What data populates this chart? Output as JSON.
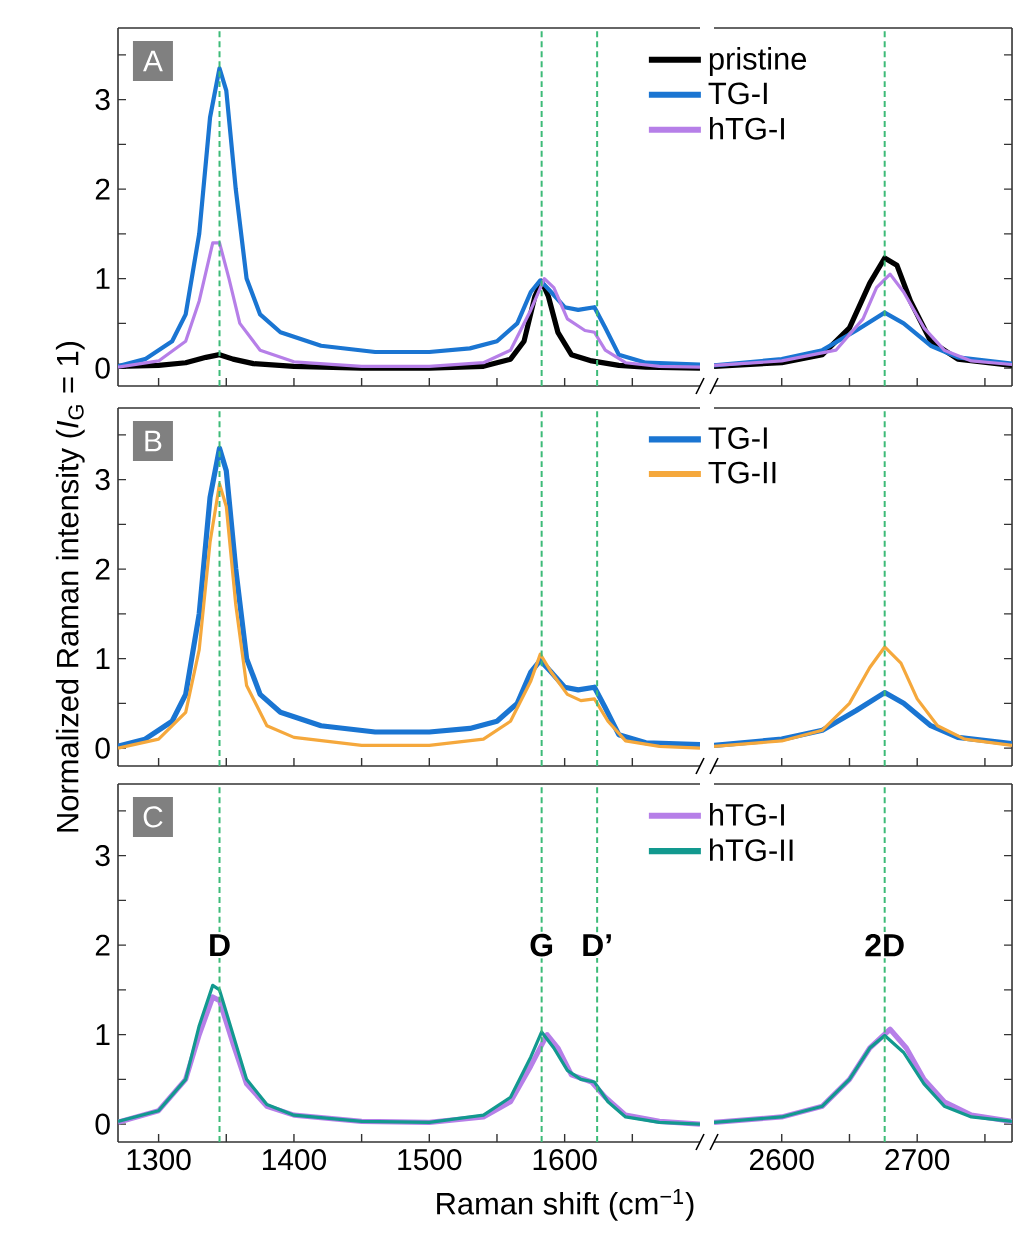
{
  "chart_data": [
    {
      "type": "line",
      "xlim": [
        1270,
        1700
      ],
      "ylim": [
        -0.2,
        3.8
      ],
      "tick_labels": "y",
      "xticks": [
        1300,
        {
          "value": 1350,
          "label": null
        },
        1400,
        {
          "value": 1450,
          "label": null
        },
        1500,
        {
          "value": 1550,
          "label": null
        },
        1600,
        {
          "value": 1650,
          "label": null
        }
      ],
      "yticks": [
        0,
        {
          "value": 0.5,
          "label": null
        },
        1,
        {
          "value": 1.5,
          "label": null
        },
        2,
        {
          "value": 2.5,
          "label": null
        },
        3,
        {
          "value": 3.5,
          "label": null
        }
      ],
      "annotations": [
        "A"
      ],
      "ref_lines": [
        {
          "axis": "x",
          "value": 1345,
          "color": "#3dbb78",
          "line_style": "dashed"
        },
        {
          "axis": "x",
          "value": 1583,
          "color": "#3dbb78",
          "line_style": "dashed"
        },
        {
          "axis": "x",
          "value": 1624,
          "color": "#3dbb78",
          "line_style": "dashed"
        }
      ],
      "series": [
        {
          "color": "#000000",
          "x": [
            1270,
            1300,
            1320,
            1335,
            1345,
            1355,
            1370,
            1400,
            1450,
            1500,
            1540,
            1560,
            1570,
            1578,
            1583,
            1588,
            1595,
            1605,
            1620,
            1640,
            1660,
            1700
          ],
          "values": [
            0.02,
            0.03,
            0.06,
            0.12,
            0.15,
            0.1,
            0.05,
            0.02,
            0.0,
            0.0,
            0.02,
            0.1,
            0.3,
            0.8,
            0.97,
            0.8,
            0.4,
            0.15,
            0.08,
            0.03,
            0.01,
            0.0
          ]
        },
        {
          "color": "#1a75d2",
          "x": [
            1270,
            1290,
            1310,
            1320,
            1330,
            1338,
            1345,
            1350,
            1357,
            1365,
            1375,
            1390,
            1420,
            1460,
            1500,
            1530,
            1550,
            1565,
            1575,
            1582,
            1590,
            1600,
            1610,
            1622,
            1630,
            1640,
            1660,
            1700
          ],
          "values": [
            0.02,
            0.1,
            0.3,
            0.6,
            1.5,
            2.8,
            3.35,
            3.1,
            2.0,
            1.0,
            0.6,
            0.4,
            0.25,
            0.18,
            0.18,
            0.22,
            0.3,
            0.5,
            0.85,
            0.98,
            0.85,
            0.68,
            0.65,
            0.68,
            0.45,
            0.15,
            0.06,
            0.04
          ]
        },
        {
          "color": "#b67fe8",
          "x": [
            1270,
            1300,
            1320,
            1330,
            1340,
            1345,
            1352,
            1360,
            1375,
            1400,
            1450,
            1500,
            1540,
            1560,
            1575,
            1585,
            1592,
            1602,
            1615,
            1622,
            1630,
            1645,
            1670,
            1700
          ],
          "values": [
            0.01,
            0.08,
            0.3,
            0.75,
            1.4,
            1.4,
            1.0,
            0.5,
            0.2,
            0.07,
            0.02,
            0.02,
            0.06,
            0.2,
            0.65,
            1.0,
            0.9,
            0.55,
            0.42,
            0.4,
            0.2,
            0.06,
            0.02,
            0.01
          ]
        }
      ]
    },
    {
      "type": "line",
      "xlim": [
        2550,
        2770
      ],
      "ylim": [
        -0.2,
        3.8
      ],
      "tick_labels": false,
      "legend": "top left",
      "xticks": [
        2600,
        {
          "value": 2650,
          "label": null
        },
        2700,
        {
          "value": 2750,
          "label": null
        }
      ],
      "yticks": [
        0,
        {
          "value": 0.5,
          "label": null
        },
        1,
        {
          "value": 1.5,
          "label": null
        },
        2,
        {
          "value": 2.5,
          "label": null
        },
        3,
        {
          "value": 3.5,
          "label": null
        }
      ],
      "ref_lines": [
        {
          "axis": "x",
          "value": 2676,
          "color": "#3dbb78",
          "line_style": "dashed"
        }
      ],
      "series": [
        {
          "name": "pristine",
          "color": "#000000",
          "x": [
            2550,
            2600,
            2630,
            2650,
            2665,
            2676,
            2685,
            2695,
            2710,
            2730,
            2770
          ],
          "values": [
            0.02,
            0.06,
            0.15,
            0.45,
            0.95,
            1.23,
            1.15,
            0.75,
            0.3,
            0.1,
            0.03
          ]
        },
        {
          "name": "TG-I",
          "color": "#1a75d2",
          "x": [
            2550,
            2600,
            2630,
            2655,
            2676,
            2690,
            2710,
            2730,
            2770
          ],
          "values": [
            0.03,
            0.1,
            0.2,
            0.42,
            0.62,
            0.5,
            0.25,
            0.12,
            0.05
          ]
        },
        {
          "name": "hTG-I",
          "color": "#b67fe8",
          "x": [
            2550,
            2600,
            2640,
            2660,
            2670,
            2680,
            2690,
            2705,
            2720,
            2740,
            2770
          ],
          "values": [
            0.03,
            0.08,
            0.2,
            0.55,
            0.9,
            1.05,
            0.85,
            0.45,
            0.2,
            0.08,
            0.04
          ]
        }
      ]
    },
    {
      "type": "line",
      "xlim": [
        1270,
        1700
      ],
      "ylim": [
        -0.2,
        3.8
      ],
      "tick_labels": "y",
      "ylabel": "Normalized Raman intensity  (*I*$_{G}$ = 1)",
      "xticks": [
        1300,
        {
          "value": 1350,
          "label": null
        },
        1400,
        {
          "value": 1450,
          "label": null
        },
        1500,
        {
          "value": 1550,
          "label": null
        },
        1600,
        {
          "value": 1650,
          "label": null
        }
      ],
      "yticks": [
        0,
        {
          "value": 0.5,
          "label": null
        },
        1,
        {
          "value": 1.5,
          "label": null
        },
        2,
        {
          "value": 2.5,
          "label": null
        },
        3,
        {
          "value": 3.5,
          "label": null
        }
      ],
      "annotations": [
        "B"
      ],
      "ref_lines": [
        {
          "axis": "x",
          "value": 1345,
          "color": "#3dbb78",
          "line_style": "dashed"
        },
        {
          "axis": "x",
          "value": 1583,
          "color": "#3dbb78",
          "line_style": "dashed"
        },
        {
          "axis": "x",
          "value": 1624,
          "color": "#3dbb78",
          "line_style": "dashed"
        }
      ],
      "series": [
        {
          "color": "#1a75d2",
          "x": [
            1270,
            1290,
            1310,
            1320,
            1330,
            1338,
            1345,
            1350,
            1357,
            1365,
            1375,
            1390,
            1420,
            1460,
            1500,
            1530,
            1550,
            1565,
            1575,
            1582,
            1590,
            1600,
            1610,
            1622,
            1630,
            1640,
            1660,
            1700
          ],
          "values": [
            0.02,
            0.1,
            0.3,
            0.6,
            1.5,
            2.8,
            3.35,
            3.1,
            2.0,
            1.0,
            0.6,
            0.4,
            0.25,
            0.18,
            0.18,
            0.22,
            0.3,
            0.5,
            0.85,
            0.98,
            0.85,
            0.68,
            0.65,
            0.68,
            0.45,
            0.15,
            0.06,
            0.04
          ]
        },
        {
          "color": "#f5a83c",
          "x": [
            1270,
            1300,
            1320,
            1330,
            1338,
            1345,
            1350,
            1357,
            1365,
            1380,
            1400,
            1450,
            1500,
            1540,
            1560,
            1575,
            1582,
            1590,
            1602,
            1612,
            1622,
            1632,
            1645,
            1670,
            1700
          ],
          "values": [
            0.0,
            0.1,
            0.4,
            1.1,
            2.3,
            2.95,
            2.7,
            1.6,
            0.7,
            0.25,
            0.12,
            0.03,
            0.03,
            0.1,
            0.3,
            0.75,
            1.05,
            0.85,
            0.6,
            0.53,
            0.55,
            0.3,
            0.08,
            0.02,
            0.0
          ]
        }
      ]
    },
    {
      "type": "line",
      "xlim": [
        2550,
        2770
      ],
      "ylim": [
        -0.2,
        3.8
      ],
      "tick_labels": false,
      "legend": "top left",
      "xticks": [
        2600,
        {
          "value": 2650,
          "label": null
        },
        2700,
        {
          "value": 2750,
          "label": null
        }
      ],
      "yticks": [
        0,
        {
          "value": 0.5,
          "label": null
        },
        1,
        {
          "value": 1.5,
          "label": null
        },
        2,
        {
          "value": 2.5,
          "label": null
        },
        3,
        {
          "value": 3.5,
          "label": null
        }
      ],
      "ref_lines": [
        {
          "axis": "x",
          "value": 2676,
          "color": "#3dbb78",
          "line_style": "dashed"
        }
      ],
      "series": [
        {
          "name": "TG-I",
          "color": "#1a75d2",
          "x": [
            2550,
            2600,
            2630,
            2655,
            2676,
            2690,
            2710,
            2730,
            2770
          ],
          "values": [
            0.03,
            0.1,
            0.2,
            0.42,
            0.62,
            0.5,
            0.25,
            0.12,
            0.05
          ]
        },
        {
          "name": "TG-II",
          "color": "#f5a83c",
          "x": [
            2550,
            2600,
            2630,
            2650,
            2665,
            2676,
            2688,
            2700,
            2715,
            2735,
            2770
          ],
          "values": [
            0.02,
            0.08,
            0.2,
            0.5,
            0.9,
            1.13,
            0.95,
            0.55,
            0.25,
            0.1,
            0.03
          ]
        }
      ]
    },
    {
      "type": "line",
      "xlim": [
        1270,
        1700
      ],
      "ylim": [
        -0.2,
        3.8
      ],
      "xlabel": "Raman shift  (cm$^{−1}$)",
      "xticks": [
        1300,
        {
          "value": 1350,
          "label": null
        },
        1400,
        {
          "value": 1450,
          "label": null
        },
        1500,
        {
          "value": 1550,
          "label": null
        },
        1600,
        {
          "value": 1650,
          "label": null
        }
      ],
      "yticks": [
        0,
        {
          "value": 0.5,
          "label": null
        },
        1,
        {
          "value": 1.5,
          "label": null
        },
        2,
        {
          "value": 2.5,
          "label": null
        },
        3,
        {
          "value": 3.5,
          "label": null
        }
      ],
      "annotations": [
        "C",
        {
          "text": "D",
          "x": 1345,
          "y": 2.0
        },
        {
          "text": "G",
          "x": 1583,
          "y": 2.0
        },
        {
          "text": "D’",
          "x": 1624,
          "y": 2.0
        }
      ],
      "ref_lines": [
        {
          "axis": "x",
          "value": 1345,
          "color": "#3dbb78",
          "line_style": "dashed"
        },
        {
          "axis": "x",
          "value": 1583,
          "color": "#3dbb78",
          "line_style": "dashed"
        },
        {
          "axis": "x",
          "value": 1624,
          "color": "#3dbb78",
          "line_style": "dashed"
        }
      ],
      "series": [
        {
          "color": "#b67fe8",
          "x": [
            1270,
            1300,
            1320,
            1330,
            1340,
            1345,
            1355,
            1365,
            1380,
            1400,
            1450,
            1500,
            1540,
            1560,
            1575,
            1587,
            1595,
            1605,
            1620,
            1630,
            1645,
            1670,
            1700
          ],
          "values": [
            0.02,
            0.15,
            0.5,
            1.0,
            1.42,
            1.38,
            0.9,
            0.45,
            0.2,
            0.1,
            0.03,
            0.02,
            0.08,
            0.25,
            0.65,
            1.0,
            0.85,
            0.55,
            0.47,
            0.3,
            0.1,
            0.03,
            0.0
          ]
        },
        {
          "color": "#12998f",
          "x": [
            1270,
            1300,
            1320,
            1330,
            1340,
            1345,
            1355,
            1365,
            1380,
            1400,
            1450,
            1500,
            1540,
            1560,
            1575,
            1583,
            1592,
            1602,
            1612,
            1622,
            1632,
            1645,
            1670,
            1700
          ],
          "values": [
            0.03,
            0.15,
            0.5,
            1.1,
            1.55,
            1.5,
            1.0,
            0.5,
            0.22,
            0.1,
            0.03,
            0.02,
            0.1,
            0.3,
            0.75,
            1.03,
            0.85,
            0.6,
            0.5,
            0.47,
            0.25,
            0.08,
            0.02,
            0.0
          ]
        }
      ]
    },
    {
      "type": "line",
      "xlim": [
        2550,
        2770
      ],
      "ylim": [
        -0.2,
        3.8
      ],
      "tick_labels": "x",
      "legend": "top left",
      "xticks": [
        2600,
        {
          "value": 2650,
          "label": null
        },
        2700,
        {
          "value": 2750,
          "label": null
        }
      ],
      "yticks": [
        0,
        {
          "value": 0.5,
          "label": null
        },
        1,
        {
          "value": 1.5,
          "label": null
        },
        2,
        {
          "value": 2.5,
          "label": null
        },
        3,
        {
          "value": 3.5,
          "label": null
        }
      ],
      "annotations": [
        {
          "text": "2D",
          "x": 2676,
          "y": 2.0
        }
      ],
      "ref_lines": [
        {
          "axis": "x",
          "value": 2676,
          "color": "#3dbb78",
          "line_style": "dashed"
        }
      ],
      "series": [
        {
          "name": "hTG-I",
          "color": "#b67fe8",
          "x": [
            2550,
            2600,
            2630,
            2650,
            2665,
            2680,
            2692,
            2705,
            2720,
            2740,
            2770
          ],
          "values": [
            0.02,
            0.08,
            0.2,
            0.5,
            0.85,
            1.06,
            0.85,
            0.5,
            0.25,
            0.1,
            0.03
          ]
        },
        {
          "name": "hTG-II",
          "color": "#12998f",
          "x": [
            2550,
            2600,
            2630,
            2650,
            2665,
            2676,
            2690,
            2705,
            2720,
            2740,
            2770
          ],
          "values": [
            0.02,
            0.08,
            0.2,
            0.5,
            0.85,
            0.99,
            0.8,
            0.45,
            0.2,
            0.08,
            0.03
          ]
        }
      ]
    }
  ]
}
